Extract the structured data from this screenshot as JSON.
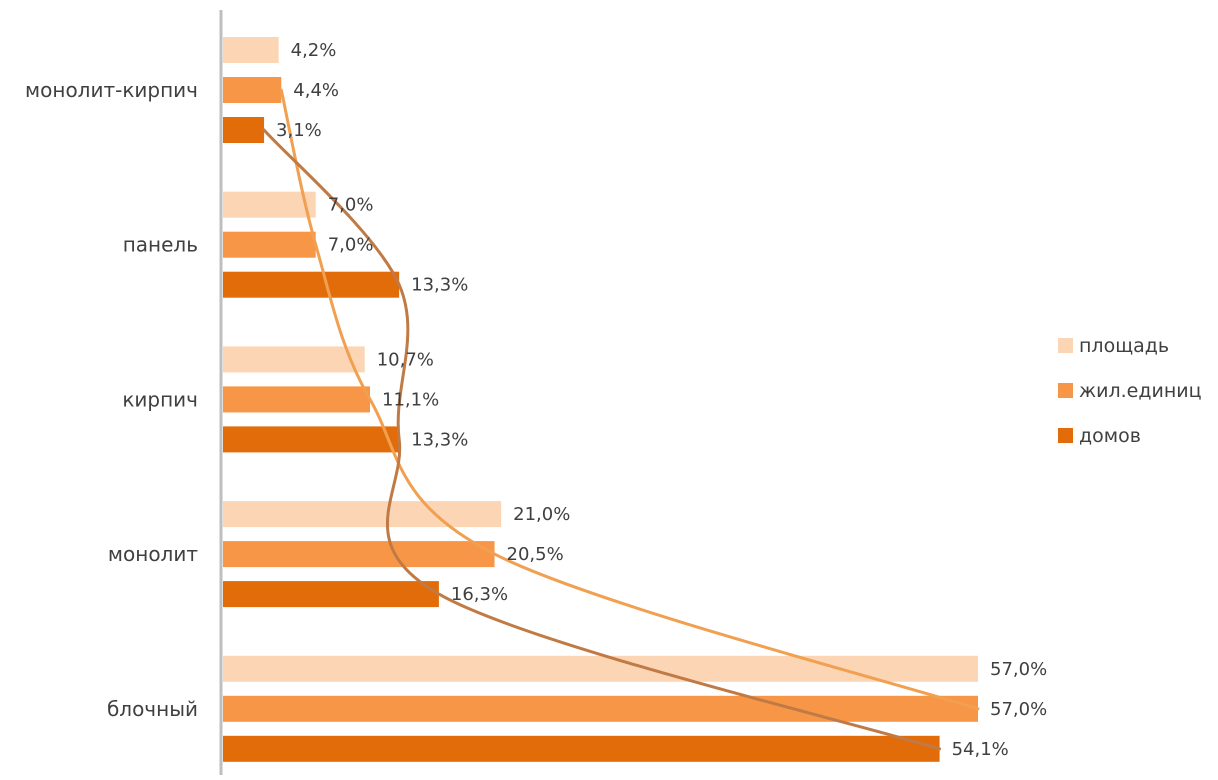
{
  "chart_data": {
    "type": "bar",
    "orientation": "horizontal",
    "title": "",
    "xlabel": "",
    "ylabel": "",
    "xlim": [
      0,
      60
    ],
    "grid": false,
    "legend_placement": "right",
    "categories": [
      "монолит-кирпич",
      "панель",
      "кирпич",
      "монолит",
      "блочный"
    ],
    "series": [
      {
        "name": "площадь",
        "color": "#FCD5B4",
        "values": [
          4.2,
          7.0,
          10.7,
          21.0,
          57.0
        ],
        "labels": [
          "4,2%",
          "7,0%",
          "10,7%",
          "21,0%",
          "57,0%"
        ]
      },
      {
        "name": "жил.единиц",
        "color": "#F79646",
        "values": [
          4.4,
          7.0,
          11.1,
          20.5,
          57.0
        ],
        "labels": [
          "4,4%",
          "7,0%",
          "11,1%",
          "20,5%",
          "57,0%"
        ]
      },
      {
        "name": "домов",
        "color": "#E36C0A",
        "values": [
          3.1,
          13.3,
          13.3,
          16.3,
          54.1
        ],
        "labels": [
          "3,1%",
          "13,3%",
          "13,3%",
          "16,3%",
          "54,1%"
        ]
      }
    ],
    "trend_lines": [
      {
        "series": "жил.единиц",
        "color": "#F0A050"
      },
      {
        "series": "домов",
        "color": "#C07A45"
      }
    ]
  }
}
